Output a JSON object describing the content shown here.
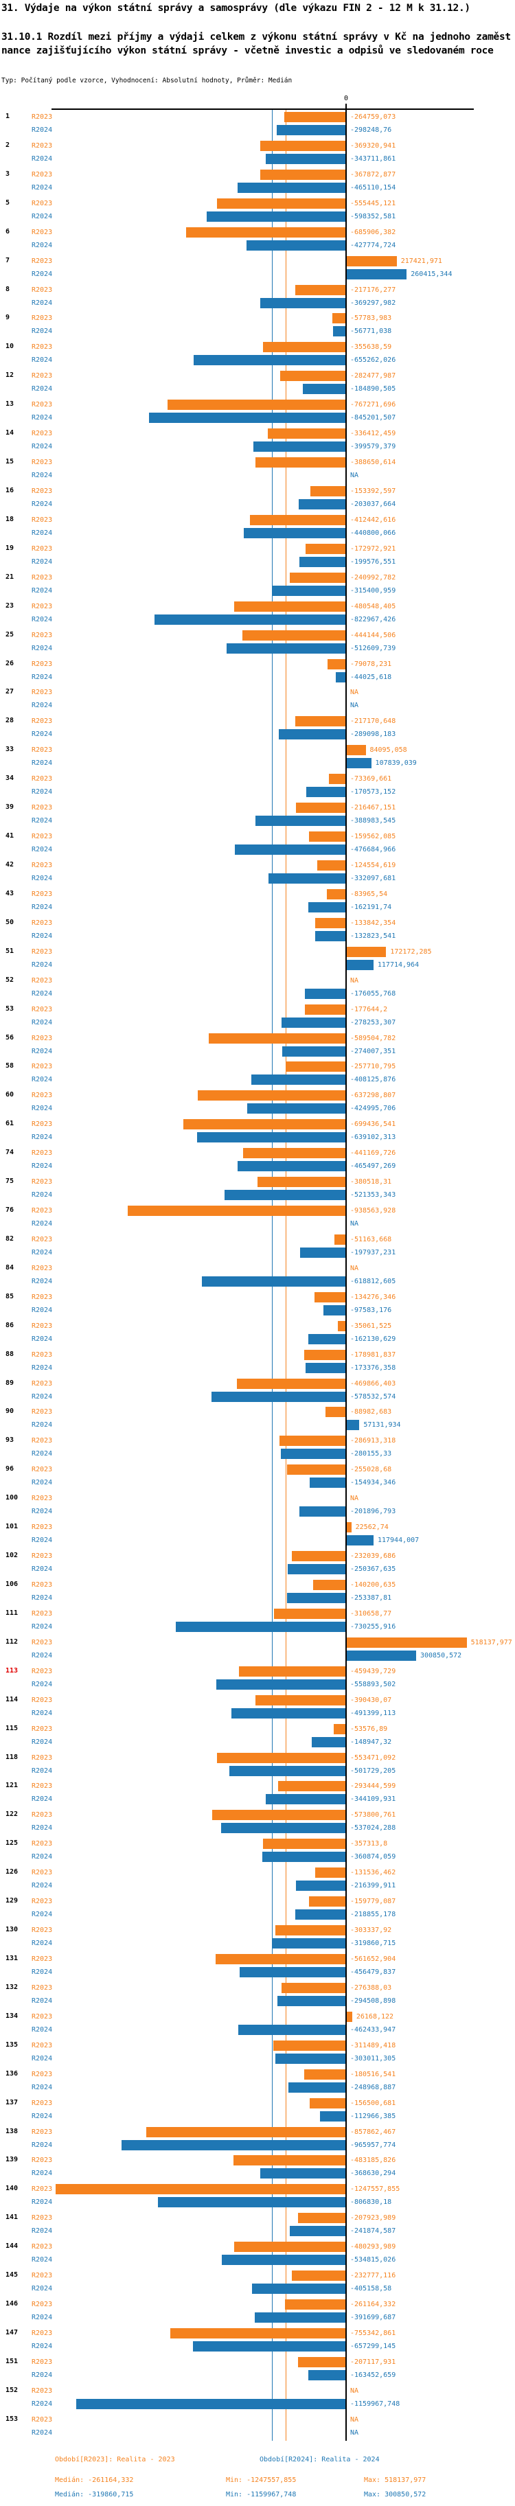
{
  "title_line1": "31. Výdaje na výkon státní správy a samosprávy (dle výkazu FIN 2 - 12 M k 31.12.)",
  "title_line2": "31.10.1 Rozdíl mezi příjmy a výdaji celkem z výkonu státní správy v Kč na jednoho zaměstnance zajišťujícího výkon státní správy - včetně investic a odpisů ve sledovaném roce",
  "meta_line": "Typ: Počítaný podle vzorce, Vyhodnocení: Absolutní hodnoty, Průměr: Medián",
  "series_labels": {
    "r2023": "R2023",
    "r2024": "R2024"
  },
  "na_label": "NA",
  "colors": {
    "r2023": "#f5821e",
    "r2024": "#1f77b4",
    "highlight_id": "#e00000",
    "axis": "#000000"
  },
  "axis": {
    "zero_label": "0"
  },
  "footer": {
    "period_2023": "Období[R2023]: Realita - 2023",
    "period_2024": "Období[R2024]: Realita - 2024",
    "median_2023": "Medián: -261164,332",
    "min_2023": "Min: -1247557,855",
    "max_2023": "Max: 518137,977",
    "median_2024": "Medián: -319860,715",
    "min_2024": "Min: -1159967,748",
    "max_2024": "Max: 300850,572"
  },
  "chart_data": {
    "type": "bar",
    "orientation": "horizontal",
    "unit": "Kč",
    "series": [
      "R2023",
      "R2024"
    ],
    "legend_position": "none",
    "grid": false,
    "xlim": [
      -1260000,
      530000
    ],
    "median_lines": {
      "R2023": -261164.332,
      "R2024": -319860.715
    },
    "rows": [
      {
        "id": "1",
        "r2023": "-264759,073",
        "r2024": "-298248,76"
      },
      {
        "id": "2",
        "r2023": "-369320,941",
        "r2024": "-343711,861"
      },
      {
        "id": "3",
        "r2023": "-367872,877",
        "r2024": "-465110,154"
      },
      {
        "id": "5",
        "r2023": "-555445,121",
        "r2024": "-598352,581"
      },
      {
        "id": "6",
        "r2023": "-685906,382",
        "r2024": "-427774,724"
      },
      {
        "id": "7",
        "r2023": "217421,971",
        "r2024": "260415,344"
      },
      {
        "id": "8",
        "r2023": "-217176,277",
        "r2024": "-369297,982"
      },
      {
        "id": "9",
        "r2023": "-57783,983",
        "r2024": "-56771,038"
      },
      {
        "id": "10",
        "r2023": "-355638,59",
        "r2024": "-655262,026"
      },
      {
        "id": "12",
        "r2023": "-282477,987",
        "r2024": "-184890,505"
      },
      {
        "id": "13",
        "r2023": "-767271,696",
        "r2024": "-845201,507"
      },
      {
        "id": "14",
        "r2023": "-336412,459",
        "r2024": "-399579,379"
      },
      {
        "id": "15",
        "r2023": "-388650,614",
        "r2024": "NA"
      },
      {
        "id": "16",
        "r2023": "-153392,597",
        "r2024": "-203037,664"
      },
      {
        "id": "18",
        "r2023": "-412442,616",
        "r2024": "-440800,066"
      },
      {
        "id": "19",
        "r2023": "-172972,921",
        "r2024": "-199576,551"
      },
      {
        "id": "21",
        "r2023": "-240992,782",
        "r2024": "-315400,959"
      },
      {
        "id": "23",
        "r2023": "-480548,405",
        "r2024": "-822967,426"
      },
      {
        "id": "25",
        "r2023": "-444144,506",
        "r2024": "-512609,739"
      },
      {
        "id": "26",
        "r2023": "-79078,231",
        "r2024": "-44025,618"
      },
      {
        "id": "27",
        "r2023": "NA",
        "r2024": "NA"
      },
      {
        "id": "28",
        "r2023": "-217170,648",
        "r2024": "-289098,183"
      },
      {
        "id": "33",
        "r2023": "84095,058",
        "r2024": "107839,039"
      },
      {
        "id": "34",
        "r2023": "-73369,661",
        "r2024": "-170573,152"
      },
      {
        "id": "39",
        "r2023": "-216467,151",
        "r2024": "-388983,545"
      },
      {
        "id": "41",
        "r2023": "-159562,085",
        "r2024": "-476684,966"
      },
      {
        "id": "42",
        "r2023": "-124554,619",
        "r2024": "-332097,681"
      },
      {
        "id": "43",
        "r2023": "-83965,54",
        "r2024": "-162191,74"
      },
      {
        "id": "50",
        "r2023": "-133842,354",
        "r2024": "-132823,541"
      },
      {
        "id": "51",
        "r2023": "172172,285",
        "r2024": "117714,964"
      },
      {
        "id": "52",
        "r2023": "NA",
        "r2024": "-176055,768"
      },
      {
        "id": "53",
        "r2023": "-177644,2",
        "r2024": "-278253,307"
      },
      {
        "id": "56",
        "r2023": "-589504,782",
        "r2024": "-274007,351"
      },
      {
        "id": "58",
        "r2023": "-257710,795",
        "r2024": "-408125,876"
      },
      {
        "id": "60",
        "r2023": "-637298,807",
        "r2024": "-424995,706"
      },
      {
        "id": "61",
        "r2023": "-699436,541",
        "r2024": "-639102,313"
      },
      {
        "id": "74",
        "r2023": "-441169,726",
        "r2024": "-465497,269"
      },
      {
        "id": "75",
        "r2023": "-380518,31",
        "r2024": "-521353,343"
      },
      {
        "id": "76",
        "r2023": "-938563,928",
        "r2024": "NA"
      },
      {
        "id": "82",
        "r2023": "-51163,668",
        "r2024": "-197937,231"
      },
      {
        "id": "84",
        "r2023": "NA",
        "r2024": "-618812,605"
      },
      {
        "id": "85",
        "r2023": "-134276,346",
        "r2024": "-97583,176"
      },
      {
        "id": "86",
        "r2023": "-35061,525",
        "r2024": "-162130,629"
      },
      {
        "id": "88",
        "r2023": "-178981,837",
        "r2024": "-173376,358"
      },
      {
        "id": "89",
        "r2023": "-469866,403",
        "r2024": "-578532,574"
      },
      {
        "id": "90",
        "r2023": "-88982,683",
        "r2024": "57131,934"
      },
      {
        "id": "93",
        "r2023": "-286913,318",
        "r2024": "-280155,33"
      },
      {
        "id": "96",
        "r2023": "-255028,68",
        "r2024": "-154934,346"
      },
      {
        "id": "100",
        "r2023": "NA",
        "r2024": "-201896,793"
      },
      {
        "id": "101",
        "r2023": "22562,74",
        "r2024": "117944,007"
      },
      {
        "id": "102",
        "r2023": "-232039,686",
        "r2024": "-250367,635"
      },
      {
        "id": "106",
        "r2023": "-140200,635",
        "r2024": "-253387,81"
      },
      {
        "id": "111",
        "r2023": "-310658,77",
        "r2024": "-730255,916"
      },
      {
        "id": "112",
        "r2023": "518137,977",
        "r2024": "300850,572"
      },
      {
        "id": "113",
        "highlight": true,
        "r2023": "-459439,729",
        "r2024": "-558893,502"
      },
      {
        "id": "114",
        "r2023": "-390430,07",
        "r2024": "-491399,113"
      },
      {
        "id": "115",
        "r2023": "-53576,89",
        "r2024": "-148947,32"
      },
      {
        "id": "118",
        "r2023": "-553471,092",
        "r2024": "-501729,205"
      },
      {
        "id": "121",
        "r2023": "-293444,599",
        "r2024": "-344109,931"
      },
      {
        "id": "122",
        "r2023": "-573800,761",
        "r2024": "-537024,288"
      },
      {
        "id": "125",
        "r2023": "-357313,8",
        "r2024": "-360874,059"
      },
      {
        "id": "126",
        "r2023": "-131536,462",
        "r2024": "-216399,911"
      },
      {
        "id": "129",
        "r2023": "-159779,087",
        "r2024": "-218855,178"
      },
      {
        "id": "130",
        "r2023": "-303337,92",
        "r2024": "-319860,715"
      },
      {
        "id": "131",
        "r2023": "-561652,904",
        "r2024": "-456479,837"
      },
      {
        "id": "132",
        "r2023": "-276388,03",
        "r2024": "-294508,898"
      },
      {
        "id": "134",
        "r2023": "26168,122",
        "r2024": "-462433,947"
      },
      {
        "id": "135",
        "r2023": "-311489,418",
        "r2024": "-303011,305"
      },
      {
        "id": "136",
        "r2023": "-180516,541",
        "r2024": "-248968,887"
      },
      {
        "id": "137",
        "r2023": "-156500,681",
        "r2024": "-112966,385"
      },
      {
        "id": "138",
        "r2023": "-857862,467",
        "r2024": "-965957,774"
      },
      {
        "id": "139",
        "r2023": "-483185,826",
        "r2024": "-368630,294"
      },
      {
        "id": "140",
        "r2023": "-1247557,855",
        "r2024": "-806830,18"
      },
      {
        "id": "141",
        "r2023": "-207923,989",
        "r2024": "-241874,587"
      },
      {
        "id": "144",
        "r2023": "-480293,989",
        "r2024": "-534815,026"
      },
      {
        "id": "145",
        "r2023": "-232777,116",
        "r2024": "-405158,58"
      },
      {
        "id": "146",
        "r2023": "-261164,332",
        "r2024": "-391699,687"
      },
      {
        "id": "147",
        "r2023": "-755342,861",
        "r2024": "-657299,145"
      },
      {
        "id": "151",
        "r2023": "-207117,931",
        "r2024": "-163452,659"
      },
      {
        "id": "152",
        "r2023": "NA",
        "r2024": "-1159967,748"
      },
      {
        "id": "153",
        "r2023": "NA",
        "r2024": "NA"
      }
    ]
  }
}
